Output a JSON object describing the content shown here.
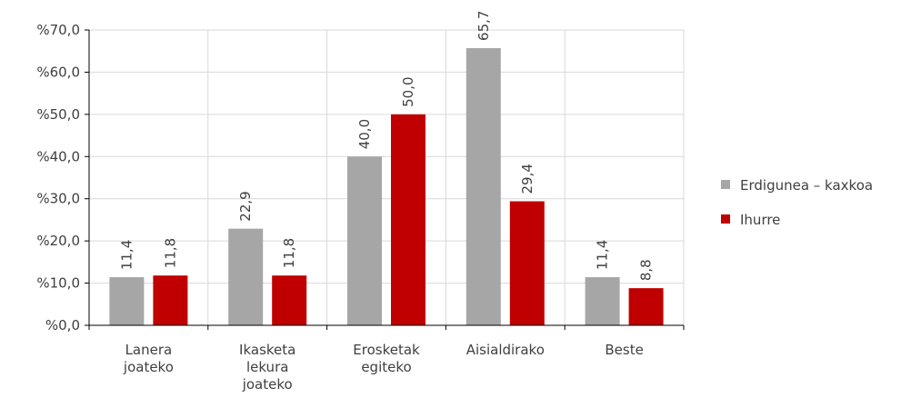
{
  "chart_data": {
    "type": "bar",
    "categories": [
      [
        "Lanera",
        "joateko"
      ],
      [
        "Ikasketa",
        "lekura",
        "joateko"
      ],
      [
        "Erosketak",
        "egiteko"
      ],
      [
        "Aisialdirako"
      ],
      [
        "Beste"
      ]
    ],
    "series": [
      {
        "name": "Erdigunea – kaxkoa",
        "color": "#A6A6A6",
        "values": [
          11.4,
          22.9,
          40.0,
          65.7,
          11.4
        ],
        "labels": [
          "11,4",
          "22,9",
          "40,0",
          "65,7",
          "11,4"
        ]
      },
      {
        "name": "Ihurre",
        "color": "#C00000",
        "values": [
          11.8,
          11.8,
          50.0,
          29.4,
          8.8
        ],
        "labels": [
          "11,8",
          "11,8",
          "50,0",
          "29,4",
          "8,8"
        ]
      }
    ],
    "yticks": [
      0,
      10,
      20,
      30,
      40,
      50,
      60,
      70
    ],
    "ytick_labels": [
      "%0,0",
      "%10,0",
      "%20,0",
      "%30,0",
      "%40,0",
      "%50,0",
      "%60,0",
      "%70,0"
    ],
    "ylim": [
      0,
      70
    ],
    "grid": true,
    "legend_position": "right",
    "title": "",
    "xlabel": "",
    "ylabel": ""
  }
}
